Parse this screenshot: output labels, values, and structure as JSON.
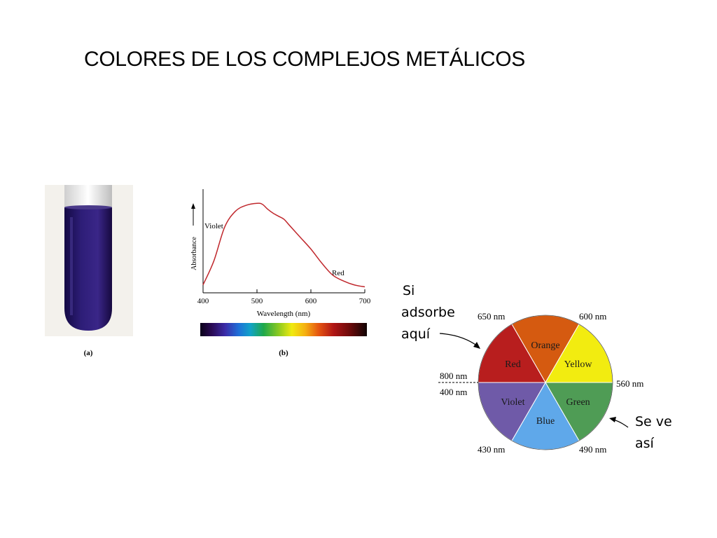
{
  "slide": {
    "title": "COLORES DE LOS COMPLEJOS METÁLICOS"
  },
  "panel_a": {
    "label": "(a)",
    "solution_color": "#2a1a6e"
  },
  "panel_b": {
    "label": "(b)",
    "y_axis_label": "Absorbance",
    "x_axis_label": "Wavelength (nm)",
    "x_ticks": [
      "400",
      "500",
      "600",
      "700"
    ],
    "annotations": {
      "left": "Violet",
      "right": "Red"
    },
    "curve_color": "#c0282d"
  },
  "chart_data": {
    "type": "line",
    "xlabel": "Wavelength (nm)",
    "ylabel": "Absorbance",
    "xlim": [
      400,
      700
    ],
    "series": [
      {
        "x": [
          400,
          420,
          440,
          460,
          480,
          500,
          510,
          520,
          530,
          540,
          550,
          560,
          580,
          600,
          620,
          640,
          660,
          680,
          700
        ],
        "values": [
          0.08,
          0.32,
          0.66,
          0.82,
          0.88,
          0.9,
          0.89,
          0.84,
          0.8,
          0.77,
          0.74,
          0.68,
          0.56,
          0.44,
          0.3,
          0.18,
          0.12,
          0.08,
          0.06
        ]
      }
    ]
  },
  "color_wheel": {
    "segments": [
      {
        "label": "Orange",
        "color": "#d55a10"
      },
      {
        "label": "Yellow",
        "color": "#f2ec10"
      },
      {
        "label": "Green",
        "color": "#4f9c55"
      },
      {
        "label": "Blue",
        "color": "#5fa8ea"
      },
      {
        "label": "Violet",
        "color": "#6f5aa8"
      },
      {
        "label": "Red",
        "color": "#b81e1e"
      }
    ],
    "wavelengths": {
      "top_left": "650 nm",
      "top_right": "600 nm",
      "left_upper": "800 nm",
      "left_lower": "400 nm",
      "right": "560 nm",
      "bottom_left": "430 nm",
      "bottom_right": "490 nm"
    }
  },
  "callouts": {
    "absorb": [
      "Si",
      "adsorbe",
      "aquí"
    ],
    "seen": [
      "Se ve",
      "así"
    ]
  }
}
